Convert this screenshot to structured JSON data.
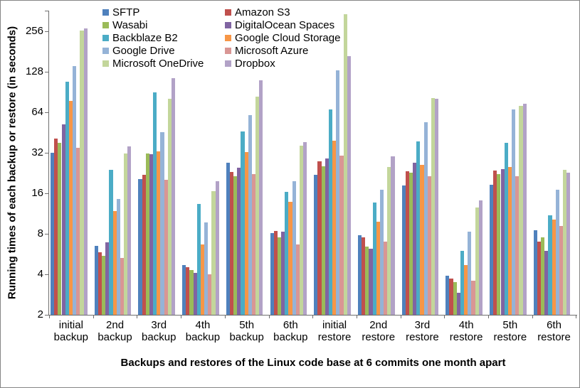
{
  "chart_data": {
    "type": "bar",
    "scale": "log2",
    "title": "",
    "xlabel": "Backups and restores of the Linux code base at 6 commits one month apart",
    "ylabel": "Running times of each backup or restore (in seconds)",
    "y_ticks": [
      2,
      4,
      8,
      16,
      32,
      64,
      128,
      256
    ],
    "ylim": [
      2,
      400
    ],
    "grid": false,
    "legend_position": "top-center-two-columns",
    "categories": [
      "initial backup",
      "2nd backup",
      "3rd backup",
      "4th backup",
      "5th backup",
      "6th backup",
      "initial restore",
      "2nd restore",
      "3rd restore",
      "4th restore",
      "5th restore",
      "6th restore"
    ],
    "series": [
      {
        "name": "SFTP",
        "color": "#4F81BD",
        "values": [
          32,
          6.5,
          20.5,
          4.7,
          27,
          8.1,
          22,
          7.8,
          18.2,
          3.9,
          18.6,
          8.5
        ]
      },
      {
        "name": "Amazon S3",
        "color": "#C0504D",
        "values": [
          41,
          5.8,
          22,
          4.5,
          23,
          8.4,
          27.7,
          7.5,
          23.2,
          3.7,
          23.5,
          7.0
        ]
      },
      {
        "name": "Wasabi",
        "color": "#9BBB59",
        "values": [
          38,
          5.5,
          31.5,
          4.3,
          21.4,
          7.5,
          25.5,
          6.4,
          22.9,
          3.5,
          22.2,
          7.5
        ]
      },
      {
        "name": "DigitalOcean Spaces",
        "color": "#8064A2",
        "values": [
          52,
          6.9,
          31.2,
          4.1,
          24.7,
          8.3,
          29.1,
          6.2,
          27.1,
          2.9,
          24.2,
          6.0
        ]
      },
      {
        "name": "Backblaze B2",
        "color": "#4BACC6",
        "values": [
          108,
          23.9,
          89.7,
          13.4,
          46.2,
          16.3,
          67.5,
          13.7,
          39.1,
          6.0,
          37.8,
          11.0
        ]
      },
      {
        "name": "Google Cloud Storage",
        "color": "#F79646",
        "values": [
          77.8,
          11.8,
          32.9,
          6.7,
          32.2,
          13.9,
          39.4,
          9.8,
          26.0,
          4.7,
          25.2,
          10.2
        ]
      },
      {
        "name": "Google Drive",
        "color": "#95B3D7",
        "values": [
          141,
          14.5,
          45.6,
          9.7,
          60.6,
          19.7,
          131,
          17.0,
          54.0,
          8.3,
          67.4,
          17.1
        ]
      },
      {
        "name": "Microsoft Azure",
        "color": "#D99694",
        "values": [
          34.8,
          5.3,
          20.2,
          4.0,
          22.1,
          6.7,
          30.6,
          7.0,
          21.3,
          3.6,
          21.4,
          9.1
        ]
      },
      {
        "name": "Microsoft OneDrive",
        "color": "#C3D69B",
        "values": [
          259,
          31.6,
          81.0,
          16.6,
          83.3,
          36.2,
          342,
          25.1,
          81.6,
          12.5,
          71.6,
          24.0
        ]
      },
      {
        "name": "Dropbox",
        "color": "#B2A2C7",
        "values": [
          270,
          35.8,
          115,
          19.7,
          110,
          38.6,
          167,
          30.0,
          81.0,
          14.1,
          73.8,
          22.8
        ]
      }
    ]
  }
}
